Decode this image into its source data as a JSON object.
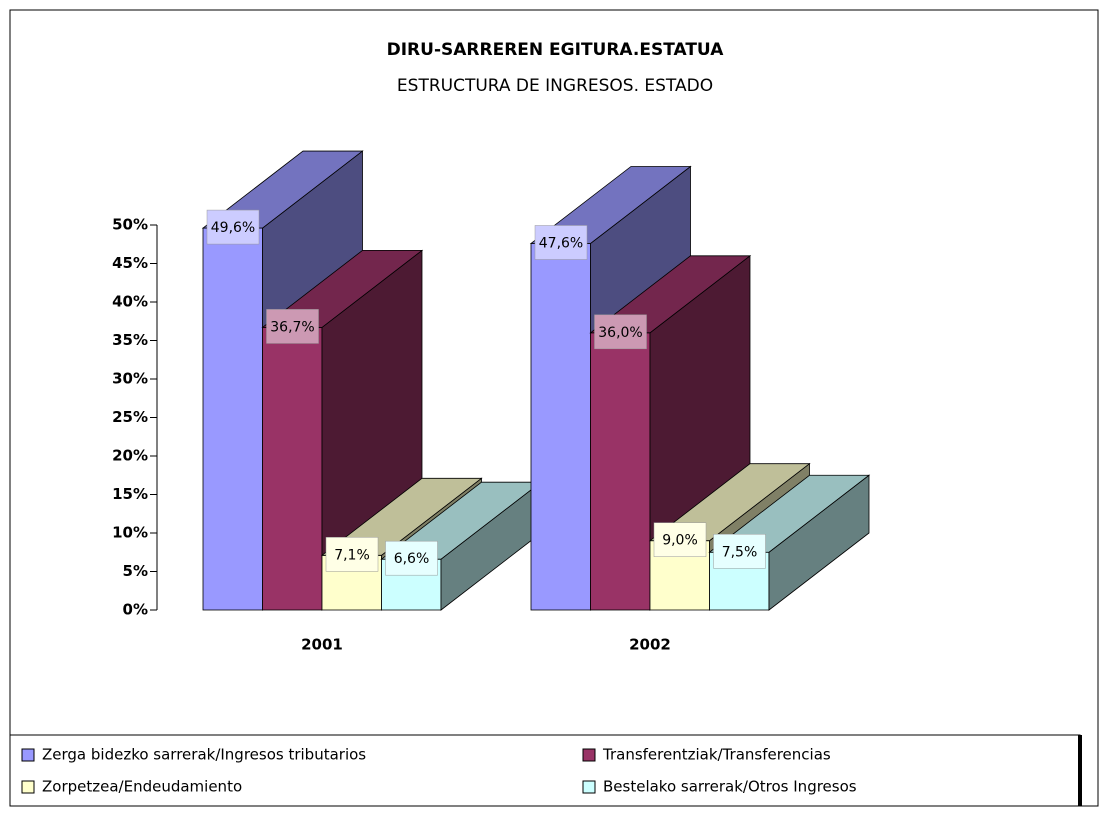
{
  "chart_data": {
    "type": "bar3d",
    "title": "DIRU-SARREREN EGITURA.ESTATUA",
    "subtitle": "ESTRUCTURA DE INGRESOS. ESTADO",
    "categories": [
      "2001",
      "2002"
    ],
    "series": [
      {
        "name": "Zerga bidezko sarrerak/Ingresos tributarios",
        "color": "#9999ff",
        "values": [
          49.6,
          47.6
        ],
        "value_labels": [
          "49,6%",
          "47,6%"
        ]
      },
      {
        "name": "Transferentziak/Transferencias",
        "color": "#993366",
        "values": [
          36.7,
          36.0
        ],
        "value_labels": [
          "36,7%",
          "36,0%"
        ]
      },
      {
        "name": "Zorpetzea/Endeudamiento",
        "color": "#ffffcc",
        "values": [
          7.1,
          9.0
        ],
        "value_labels": [
          "7,1%",
          "9,0%"
        ]
      },
      {
        "name": "Bestelako sarrerak/Otros Ingresos",
        "color": "#ccffff",
        "values": [
          6.6,
          7.5
        ],
        "value_labels": [
          "6,6%",
          "7,5%"
        ]
      }
    ],
    "ylim": [
      0,
      50
    ],
    "yticks": [
      {
        "value": 0,
        "label": "0%"
      },
      {
        "value": 5,
        "label": "5%"
      },
      {
        "value": 10,
        "label": "10%"
      },
      {
        "value": 15,
        "label": "15%"
      },
      {
        "value": 20,
        "label": "20%"
      },
      {
        "value": 25,
        "label": "25%"
      },
      {
        "value": 30,
        "label": "30%"
      },
      {
        "value": 35,
        "label": "35%"
      },
      {
        "value": 40,
        "label": "40%"
      },
      {
        "value": 45,
        "label": "45%"
      },
      {
        "value": 50,
        "label": "50%"
      }
    ],
    "legend": "bottom"
  }
}
